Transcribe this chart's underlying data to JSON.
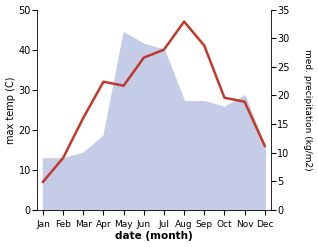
{
  "months": [
    "Jan",
    "Feb",
    "Mar",
    "Apr",
    "May",
    "Jun",
    "Jul",
    "Aug",
    "Sep",
    "Oct",
    "Nov",
    "Dec"
  ],
  "temperature": [
    7,
    13,
    23,
    32,
    31,
    38,
    40,
    47,
    41,
    28,
    27,
    16
  ],
  "precipitation_kg": [
    9,
    9,
    10,
    13,
    31,
    29,
    28,
    19,
    19,
    18,
    20,
    11
  ],
  "temp_color": "#c0392b",
  "precip_fill_color": "#c5cce8",
  "temp_ylim": [
    0,
    50
  ],
  "precip_ylim": [
    0,
    35
  ],
  "xlabel": "date (month)",
  "ylabel_left": "max temp (C)",
  "ylabel_right": "med. precipitation (kg/m2)",
  "bg_color": "#ffffff"
}
